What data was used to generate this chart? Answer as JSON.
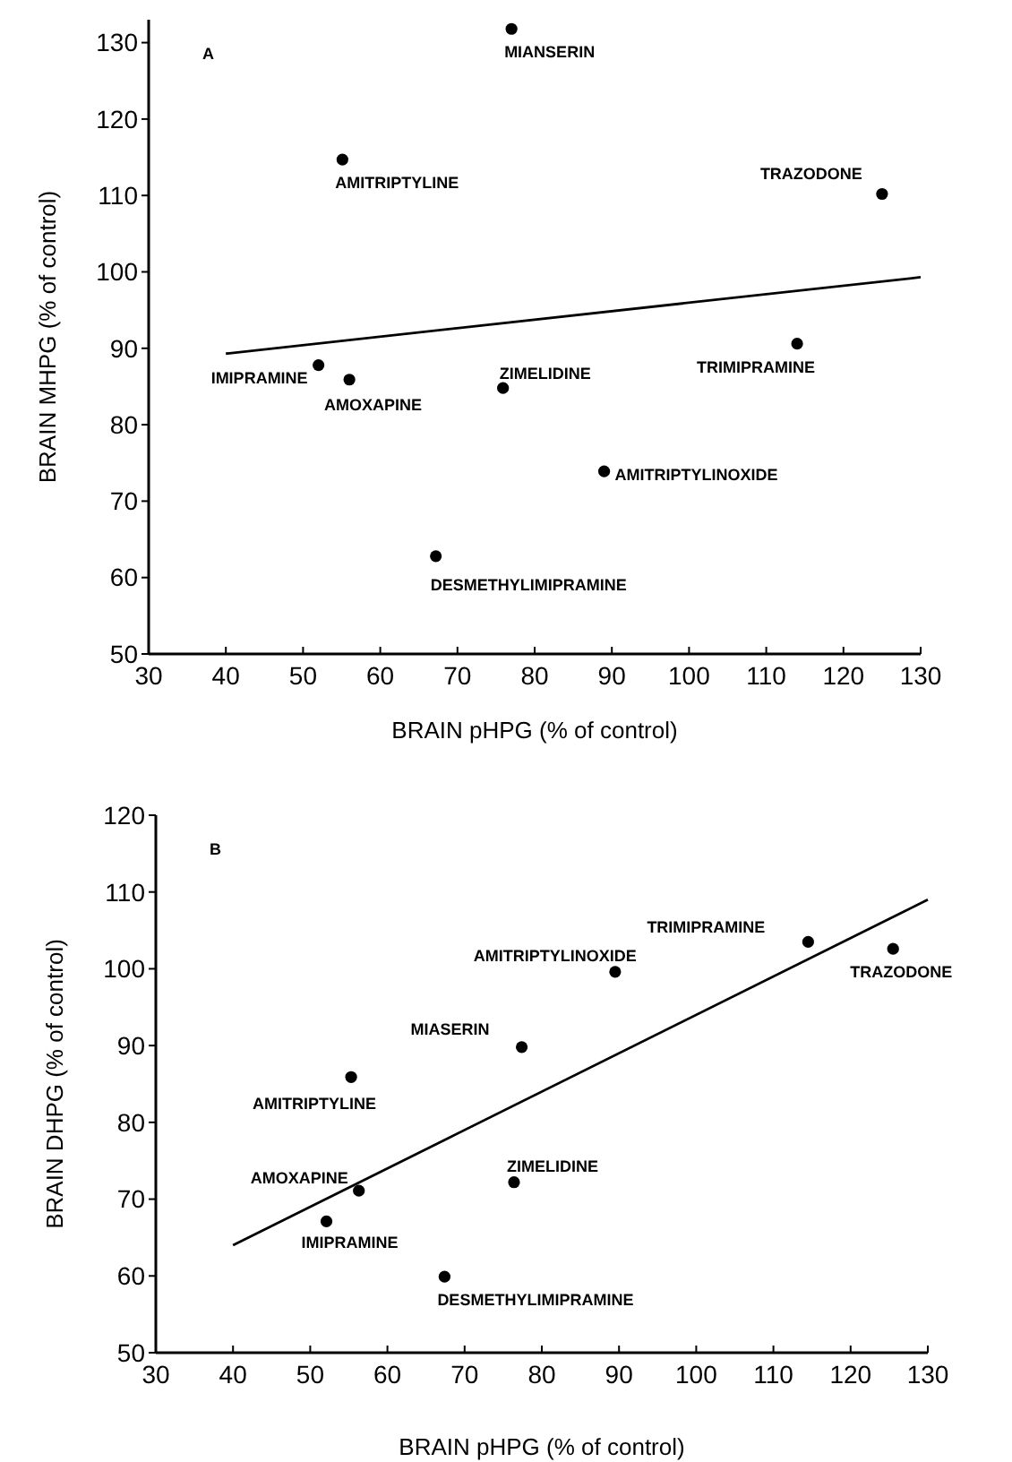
{
  "chart_data": [
    {
      "type": "scatter",
      "xlabel": "BRAIN pHPG (% of control)",
      "ylabel": "BRAIN MHPG (% of control)",
      "xlim": [
        30,
        130
      ],
      "ylim": [
        50,
        133
      ],
      "xticks": [
        30,
        40,
        50,
        60,
        70,
        80,
        90,
        100,
        110,
        120,
        130
      ],
      "yticks": [
        50,
        60,
        70,
        80,
        90,
        100,
        110,
        120,
        130
      ],
      "grid": false,
      "series": [
        {
          "color": "#000000",
          "marker": "circle",
          "x": [
            77.0,
            55.1,
            125.0,
            52.0,
            56.0,
            75.9,
            114.0,
            89.0,
            67.2
          ],
          "values": [
            131.8,
            114.7,
            110.2,
            87.8,
            85.9,
            84.8,
            90.6,
            73.9,
            62.8
          ]
        },
        {
          "type": "line",
          "color": "#000000",
          "marker": "none",
          "line_style": "solid",
          "x": [
            40,
            130
          ],
          "values": [
            89.3,
            99.3
          ]
        }
      ],
      "annotations": [
        "A",
        {
          "text": "MIANSERIN",
          "x": 77.0,
          "y": 131.8
        },
        {
          "text": "AMITRIPTYLINE",
          "x": 55.1,
          "y": 114.7
        },
        {
          "text": "TRAZODONE",
          "x": 125.0,
          "y": 110.2
        },
        {
          "text": "IMIPRAMINE",
          "x": 52.0,
          "y": 87.8
        },
        {
          "text": "AMOXAPINE",
          "x": 56.0,
          "y": 85.9
        },
        {
          "text": "ZIMELIDINE",
          "x": 75.9,
          "y": 84.8
        },
        {
          "text": "TRIMIPRAMINE",
          "x": 114.0,
          "y": 90.6
        },
        {
          "text": "AMITRIPTYLINOXIDE",
          "x": 89.0,
          "y": 73.9
        },
        {
          "text": "DESMETHYLIMIPRAMINE",
          "x": 67.2,
          "y": 62.8
        }
      ]
    },
    {
      "type": "scatter",
      "xlabel": "BRAIN pHPG (% of control)",
      "ylabel": "BRAIN DHPG (% of control)",
      "xlim": [
        30,
        130
      ],
      "ylim": [
        50,
        120
      ],
      "xticks": [
        30,
        40,
        50,
        60,
        70,
        80,
        90,
        100,
        110,
        120,
        130
      ],
      "yticks": [
        50,
        60,
        70,
        80,
        90,
        100,
        110,
        120
      ],
      "grid": false,
      "series": [
        {
          "color": "#000000",
          "marker": "circle",
          "x": [
            114.5,
            125.5,
            89.5,
            77.4,
            55.3,
            56.3,
            52.1,
            76.4,
            67.4
          ],
          "values": [
            103.5,
            102.6,
            99.6,
            89.8,
            85.9,
            71.1,
            67.1,
            72.2,
            59.9
          ]
        },
        {
          "type": "line",
          "color": "#000000",
          "marker": "none",
          "line_style": "solid",
          "x": [
            40,
            130
          ],
          "values": [
            64.0,
            109.0
          ]
        }
      ],
      "annotations": [
        "B",
        {
          "text": "TRIMIPRAMINE",
          "x": 114.5,
          "y": 103.5
        },
        {
          "text": "TRAZODONE",
          "x": 125.5,
          "y": 102.6
        },
        {
          "text": "AMITRIPTYLINOXIDE",
          "x": 89.5,
          "y": 99.6
        },
        {
          "text": "MIASERIN",
          "x": 77.4,
          "y": 89.8
        },
        {
          "text": "AMITRIPTYLINE",
          "x": 55.3,
          "y": 85.9
        },
        {
          "text": "AMOXAPINE",
          "x": 56.3,
          "y": 71.1
        },
        {
          "text": "IMIPRAMINE",
          "x": 52.1,
          "y": 67.1
        },
        {
          "text": "ZIMELIDINE",
          "x": 76.4,
          "y": 72.2
        },
        {
          "text": "DESMETHYLIMIPRAMINE",
          "x": 67.4,
          "y": 59.9
        }
      ]
    }
  ]
}
